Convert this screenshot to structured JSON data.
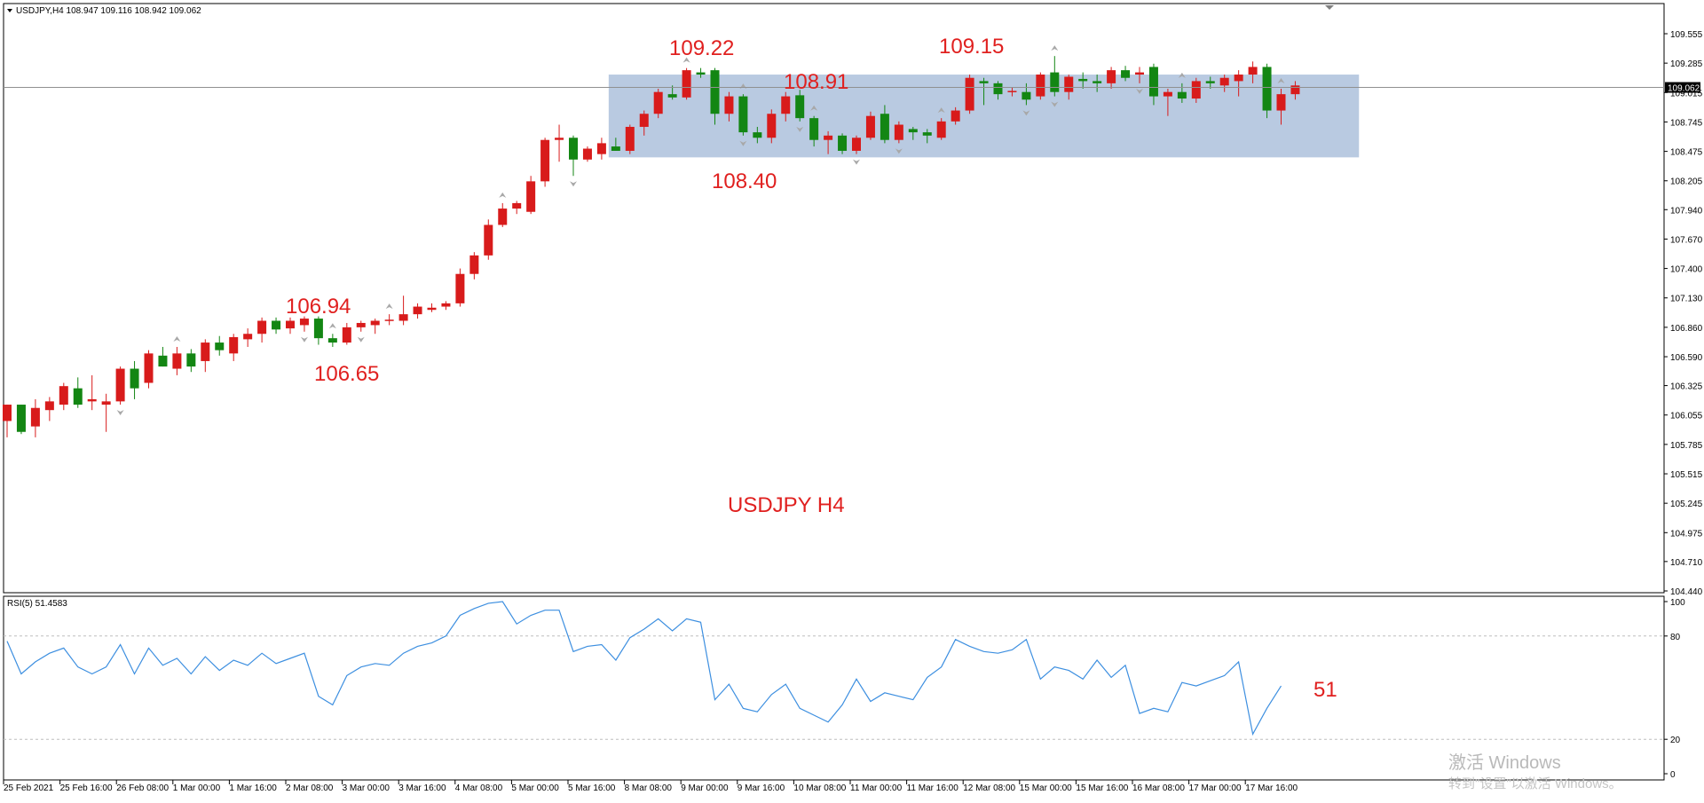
{
  "window": {
    "title": "USDJPY,H4  108.947 109.116 108.942 109.062"
  },
  "colors": {
    "up": "#d81b1b",
    "down": "#138613",
    "box": "#b5c7df",
    "rsi": "#3d8fe0",
    "annotation": "#e0201f"
  },
  "watermark": {
    "line1": "激活 Windows",
    "line2": "转到\"设置\"以激活 Windows。"
  },
  "chart_data": {
    "type": "candlestick",
    "symbol_label": "USDJPY H4",
    "current_price": "109.062",
    "price_ticks": [
      "109.555",
      "109.285",
      "109.015",
      "108.745",
      "108.475",
      "108.205",
      "107.940",
      "107.670",
      "107.400",
      "107.130",
      "106.860",
      "106.590",
      "106.325",
      "106.055",
      "105.785",
      "105.515",
      "105.245",
      "104.975",
      "104.710",
      "104.440"
    ],
    "time_ticks": [
      "25 Feb 2021",
      "25 Feb 16:00",
      "26 Feb 08:00",
      "1 Mar 00:00",
      "1 Mar 16:00",
      "2 Mar 08:00",
      "3 Mar 00:00",
      "3 Mar 16:00",
      "4 Mar 08:00",
      "5 Mar 00:00",
      "5 Mar 16:00",
      "8 Mar 08:00",
      "9 Mar 00:00",
      "9 Mar 16:00",
      "10 Mar 08:00",
      "11 Mar 00:00",
      "11 Mar 16:00",
      "12 Mar 08:00",
      "15 Mar 00:00",
      "15 Mar 16:00",
      "16 Mar 08:00",
      "17 Mar 00:00",
      "17 Mar 16:00"
    ],
    "annotations": [
      "109.22",
      "108.91",
      "109.15",
      "108.40",
      "106.94",
      "106.65"
    ],
    "range_box": {
      "start_index": 43,
      "end_index": 95,
      "high": 109.18,
      "low": 108.42
    },
    "candles": [
      [
        106.0,
        106.15,
        105.85,
        106.15
      ],
      [
        106.15,
        106.15,
        105.88,
        105.9
      ],
      [
        105.95,
        106.2,
        105.85,
        106.12
      ],
      [
        106.1,
        106.22,
        106.0,
        106.18
      ],
      [
        106.15,
        106.35,
        106.1,
        106.32
      ],
      [
        106.3,
        106.4,
        106.12,
        106.15
      ],
      [
        106.18,
        106.42,
        106.1,
        106.2
      ],
      [
        106.15,
        106.25,
        105.9,
        106.18
      ],
      [
        106.18,
        106.5,
        106.15,
        106.48
      ],
      [
        106.48,
        106.55,
        106.2,
        106.3
      ],
      [
        106.35,
        106.65,
        106.3,
        106.62
      ],
      [
        106.6,
        106.68,
        106.5,
        106.5
      ],
      [
        106.48,
        106.68,
        106.42,
        106.62
      ],
      [
        106.62,
        106.66,
        106.45,
        106.5
      ],
      [
        106.55,
        106.75,
        106.45,
        106.72
      ],
      [
        106.72,
        106.78,
        106.6,
        106.65
      ],
      [
        106.62,
        106.8,
        106.55,
        106.77
      ],
      [
        106.75,
        106.85,
        106.68,
        106.8
      ],
      [
        106.8,
        106.95,
        106.72,
        106.92
      ],
      [
        106.92,
        106.95,
        106.8,
        106.84
      ],
      [
        106.85,
        106.95,
        106.8,
        106.92
      ],
      [
        106.88,
        106.96,
        106.82,
        106.94
      ],
      [
        106.94,
        106.96,
        106.7,
        106.76
      ],
      [
        106.76,
        106.8,
        106.68,
        106.72
      ],
      [
        106.72,
        106.9,
        106.7,
        106.86
      ],
      [
        106.86,
        106.92,
        106.82,
        106.9
      ],
      [
        106.88,
        106.94,
        106.8,
        106.92
      ],
      [
        106.92,
        106.98,
        106.88,
        106.93
      ],
      [
        106.92,
        107.15,
        106.88,
        106.98
      ],
      [
        106.98,
        107.08,
        106.94,
        107.05
      ],
      [
        107.02,
        107.08,
        107.0,
        107.04
      ],
      [
        107.05,
        107.1,
        107.02,
        107.08
      ],
      [
        107.08,
        107.4,
        107.05,
        107.35
      ],
      [
        107.35,
        107.55,
        107.3,
        107.52
      ],
      [
        107.52,
        107.85,
        107.48,
        107.8
      ],
      [
        107.8,
        108.0,
        107.78,
        107.95
      ],
      [
        107.95,
        108.02,
        107.9,
        108.0
      ],
      [
        107.92,
        108.25,
        107.9,
        108.2
      ],
      [
        108.2,
        108.6,
        108.15,
        108.58
      ],
      [
        108.58,
        108.72,
        108.38,
        108.6
      ],
      [
        108.6,
        108.62,
        108.25,
        108.4
      ],
      [
        108.4,
        108.52,
        108.38,
        108.5
      ],
      [
        108.45,
        108.6,
        108.4,
        108.55
      ],
      [
        108.52,
        108.6,
        108.48,
        108.48
      ],
      [
        108.48,
        108.72,
        108.45,
        108.7
      ],
      [
        108.7,
        108.85,
        108.62,
        108.82
      ],
      [
        108.82,
        109.05,
        108.78,
        109.02
      ],
      [
        109.0,
        109.08,
        108.95,
        108.97
      ],
      [
        108.97,
        109.24,
        108.95,
        109.22
      ],
      [
        109.2,
        109.24,
        109.15,
        109.18
      ],
      [
        109.22,
        109.24,
        108.72,
        108.82
      ],
      [
        108.82,
        109.02,
        108.75,
        108.98
      ],
      [
        108.98,
        109.0,
        108.62,
        108.65
      ],
      [
        108.65,
        108.7,
        108.55,
        108.6
      ],
      [
        108.6,
        108.86,
        108.55,
        108.82
      ],
      [
        108.82,
        109.02,
        108.75,
        108.98
      ],
      [
        108.99,
        109.04,
        108.75,
        108.78
      ],
      [
        108.78,
        108.8,
        108.52,
        108.58
      ],
      [
        108.58,
        108.66,
        108.45,
        108.62
      ],
      [
        108.62,
        108.64,
        108.45,
        108.48
      ],
      [
        108.48,
        108.62,
        108.45,
        108.6
      ],
      [
        108.6,
        108.84,
        108.58,
        108.8
      ],
      [
        108.82,
        108.9,
        108.55,
        108.58
      ],
      [
        108.58,
        108.75,
        108.55,
        108.72
      ],
      [
        108.68,
        108.7,
        108.58,
        108.65
      ],
      [
        108.65,
        108.68,
        108.55,
        108.62
      ],
      [
        108.6,
        108.78,
        108.58,
        108.75
      ],
      [
        108.75,
        108.88,
        108.72,
        108.85
      ],
      [
        108.85,
        109.18,
        108.82,
        109.15
      ],
      [
        109.12,
        109.15,
        108.9,
        109.1
      ],
      [
        109.1,
        109.12,
        108.95,
        109.0
      ],
      [
        109.02,
        109.06,
        108.98,
        109.03
      ],
      [
        109.02,
        109.1,
        108.9,
        108.95
      ],
      [
        108.98,
        109.2,
        108.95,
        109.18
      ],
      [
        109.2,
        109.35,
        108.98,
        109.02
      ],
      [
        109.02,
        109.18,
        108.95,
        109.16
      ],
      [
        109.14,
        109.2,
        109.05,
        109.12
      ],
      [
        109.12,
        109.18,
        109.02,
        109.1
      ],
      [
        109.1,
        109.25,
        109.05,
        109.22
      ],
      [
        109.22,
        109.26,
        109.12,
        109.15
      ],
      [
        109.18,
        109.25,
        109.1,
        109.2
      ],
      [
        109.25,
        109.28,
        108.9,
        108.98
      ],
      [
        108.98,
        109.05,
        108.8,
        109.02
      ],
      [
        109.02,
        109.1,
        108.92,
        108.96
      ],
      [
        108.96,
        109.15,
        108.92,
        109.12
      ],
      [
        109.12,
        109.16,
        109.05,
        109.1
      ],
      [
        109.08,
        109.18,
        109.02,
        109.15
      ],
      [
        109.12,
        109.22,
        108.98,
        109.18
      ],
      [
        109.18,
        109.3,
        109.1,
        109.25
      ],
      [
        109.25,
        109.28,
        108.78,
        108.85
      ],
      [
        108.85,
        109.05,
        108.72,
        109.0
      ],
      [
        109.0,
        109.12,
        108.95,
        109.08
      ]
    ],
    "fractals_up": [
      12,
      23,
      27,
      35,
      48,
      52,
      57,
      66,
      74,
      83,
      90
    ],
    "fractals_down": [
      8,
      21,
      25,
      40,
      52,
      56,
      60,
      63,
      72,
      74,
      80
    ],
    "rsi": {
      "label": "RSI(5) 51.4583",
      "last_value_label": "51",
      "levels": [
        20,
        80
      ],
      "axis": {
        "min": 0,
        "max": 100,
        "ticks": [
          "100",
          "80",
          "20",
          "0"
        ]
      },
      "values": [
        77,
        58,
        65,
        70,
        73,
        62,
        58,
        62,
        75,
        58,
        73,
        63,
        67,
        58,
        68,
        60,
        66,
        63,
        70,
        64,
        67,
        70,
        45,
        40,
        57,
        62,
        64,
        63,
        70,
        74,
        76,
        80,
        92,
        96,
        99,
        100,
        87,
        92,
        95,
        95,
        71,
        74,
        75,
        66,
        79,
        84,
        90,
        83,
        90,
        88,
        43,
        52,
        38,
        36,
        46,
        52,
        38,
        34,
        30,
        40,
        55,
        42,
        47,
        45,
        43,
        56,
        62,
        78,
        74,
        71,
        70,
        72,
        78,
        55,
        62,
        60,
        55,
        66,
        56,
        63,
        35,
        38,
        36,
        53,
        51,
        54,
        57,
        65,
        23,
        38,
        51
      ]
    }
  }
}
